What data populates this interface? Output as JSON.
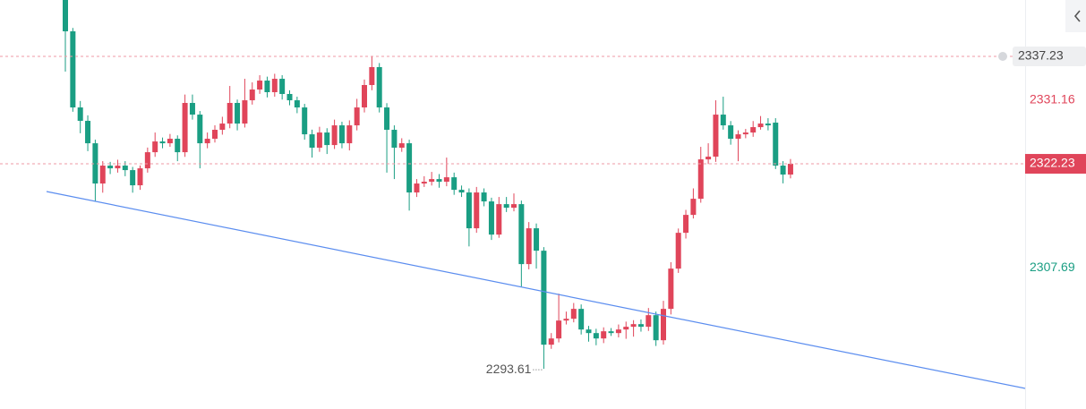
{
  "chart_data": {
    "type": "candlestick",
    "ylim": [
      2288,
      2345.1
    ],
    "up_color": "#e0455a",
    "down_color": "#1a9e83",
    "open": [
      2345.1,
      2340.73,
      2330.1,
      2328.23,
      2325.1,
      2319.48,
      2321.98,
      2321.6,
      2321.98,
      2321.35,
      2319.23,
      2321.6,
      2323.85,
      2325.35,
      2325.1,
      2325.73,
      2323.85,
      2330.73,
      2329.1,
      2325.1,
      2325.73,
      2326.98,
      2327.85,
      2330.73,
      2327.85,
      2331.1,
      2332.6,
      2333.85,
      2332.23,
      2334.1,
      2331.98,
      2331.1,
      2330.1,
      2326.35,
      2324.48,
      2326.6,
      2324.85,
      2327.6,
      2325.1,
      2327.6,
      2330.1,
      2333.23,
      2335.73,
      2330.1,
      2326.98,
      2324.48,
      2325.1,
      2318.23,
      2319.48,
      2319.73,
      2320.1,
      2319.73,
      2320.35,
      2318.6,
      2318.23,
      2313.23,
      2318.23,
      2316.98,
      2312.35,
      2316.6,
      2316.1,
      2316.6,
      2308.23,
      2313.23,
      2310.1,
      2296.98,
      2297.85,
      2300.35,
      2300.6,
      2301.98,
      2299.1,
      2298.6,
      2297.85,
      2298.85,
      2298.6,
      2299.1,
      2299.48,
      2299.85,
      2299.48,
      2301.1,
      2297.6,
      2301.98,
      2307.6,
      2312.6,
      2315.1,
      2317.35,
      2322.85,
      2323.23,
      2329.1,
      2327.6,
      2325.73,
      2326.35,
      2326.6,
      2327.35,
      2327.85,
      2327.98,
      2321.98,
      2320.73
    ],
    "high": [
      2346,
      2341.2,
      2331,
      2329,
      2325.6,
      2322.6,
      2322.5,
      2322.8,
      2322.6,
      2321.8,
      2322,
      2324.5,
      2326.6,
      2325.9,
      2326.4,
      2326.2,
      2331.9,
      2331.9,
      2329.6,
      2326.6,
      2327.6,
      2328.8,
      2333.1,
      2331.2,
      2334.1,
      2333.6,
      2334.6,
      2334.4,
      2334.8,
      2334.6,
      2332.5,
      2331.6,
      2330.6,
      2327,
      2327.4,
      2327.2,
      2328.4,
      2328.1,
      2328.3,
      2331.3,
      2334,
      2337.23,
      2336.3,
      2330.7,
      2327.6,
      2325.8,
      2325.6,
      2320.1,
      2320.5,
      2321.1,
      2320.8,
      2323.1,
      2321,
      2319.2,
      2318.8,
      2319,
      2318.8,
      2317.5,
      2317.6,
      2317.6,
      2318.1,
      2317.1,
      2314.1,
      2313.9,
      2310.6,
      2298.6,
      2304.1,
      2301.6,
      2302.8,
      2302.6,
      2299.6,
      2299.2,
      2299.4,
      2299.3,
      2299.8,
      2300.2,
      2300.4,
      2300.5,
      2302.1,
      2301.6,
      2303.1,
      2308.5,
      2313.2,
      2315.8,
      2318.8,
      2324.6,
      2325.1,
      2331.1,
      2331.6,
      2328.2,
      2326.9,
      2327.1,
      2328.2,
      2328.9,
      2328.6,
      2328.6,
      2322.6,
      2322.9
    ],
    "low": [
      2335.1,
      2329.5,
      2326.5,
      2324,
      2317,
      2318.2,
      2320.8,
      2321,
      2320.5,
      2318.2,
      2318.6,
      2321,
      2323.2,
      2324.4,
      2324.6,
      2322.6,
      2323.2,
      2328.4,
      2321.6,
      2324.4,
      2325.2,
      2326.3,
      2327.2,
      2326.9,
      2327.3,
      2330.5,
      2332,
      2331.5,
      2331.6,
      2331.2,
      2330.4,
      2329.3,
      2325.6,
      2323.1,
      2323.9,
      2323.6,
      2324.3,
      2324.4,
      2324.1,
      2326.9,
      2329.4,
      2332.5,
      2329.4,
      2321,
      2320.1,
      2323.9,
      2315.7,
      2317.6,
      2319,
      2319.2,
      2318.9,
      2319.1,
      2317.9,
      2317.6,
      2310.7,
      2312.6,
      2316.3,
      2311.6,
      2311.9,
      2315.5,
      2315.6,
      2305.1,
      2307.5,
      2307.6,
      2293.61,
      2296.4,
      2297.3,
      2299.8,
      2300.1,
      2298.4,
      2297.4,
      2296.9,
      2297.2,
      2298.2,
      2298,
      2297.8,
      2298.1,
      2298.8,
      2298.9,
      2296.8,
      2297,
      2301.2,
      2307,
      2311.8,
      2314.6,
      2316.8,
      2322.2,
      2322.5,
      2327,
      2324.9,
      2322.6,
      2325.8,
      2326,
      2327,
      2326.9,
      2321.5,
      2319.5,
      2320.2
    ],
    "close": [
      2340.73,
      2330.1,
      2328.23,
      2325.1,
      2319.48,
      2321.98,
      2321.6,
      2321.98,
      2321.35,
      2319.23,
      2321.6,
      2323.85,
      2325.35,
      2325.1,
      2325.73,
      2323.85,
      2330.73,
      2329.1,
      2325.1,
      2325.73,
      2326.98,
      2327.85,
      2330.73,
      2327.85,
      2331.1,
      2332.6,
      2333.85,
      2332.23,
      2334.1,
      2331.98,
      2331.1,
      2330.1,
      2326.35,
      2324.48,
      2326.6,
      2324.85,
      2327.6,
      2325.1,
      2327.6,
      2330.1,
      2333.23,
      2335.73,
      2330.1,
      2326.98,
      2324.48,
      2325.1,
      2318.23,
      2319.48,
      2319.73,
      2320.1,
      2319.73,
      2320.35,
      2318.6,
      2318.23,
      2313.23,
      2318.23,
      2316.98,
      2312.35,
      2316.6,
      2316.1,
      2316.6,
      2308.23,
      2313.23,
      2310.1,
      2296.98,
      2297.85,
      2300.35,
      2300.6,
      2301.98,
      2299.1,
      2298.6,
      2297.85,
      2298.85,
      2298.6,
      2299.1,
      2299.48,
      2299.85,
      2299.48,
      2301.1,
      2297.6,
      2301.98,
      2307.6,
      2312.6,
      2315.1,
      2317.35,
      2322.85,
      2323.23,
      2329.1,
      2327.6,
      2325.73,
      2326.35,
      2326.6,
      2327.35,
      2327.85,
      2327.6,
      2321.98,
      2320.73,
      2322.23
    ],
    "alert_price": 2337.23,
    "axis_labels": [
      {
        "value": 2331.16,
        "color": "#e0455a"
      },
      {
        "value": 2307.69,
        "color": "#1a9e83"
      }
    ],
    "low_marker_index": 64
  }
}
